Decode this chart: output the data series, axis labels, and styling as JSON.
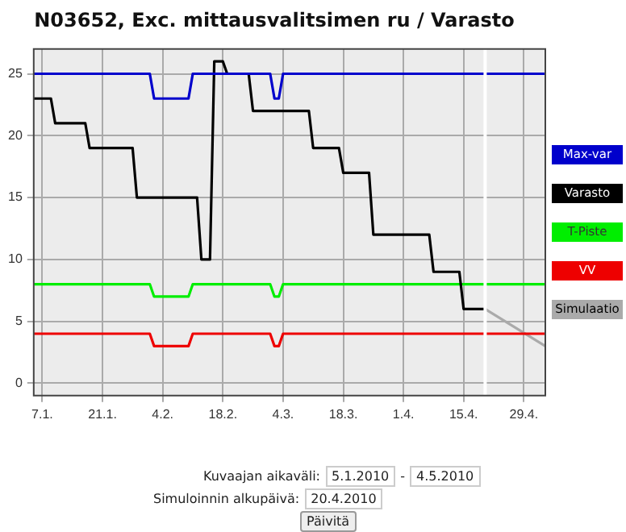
{
  "chart_data": {
    "type": "line",
    "title": "N03652, Exc. mittausvalitsimen ru / Varasto",
    "xlim": [
      "--01-05",
      "--05-04"
    ],
    "xticks": [
      {
        "value": "--01-07",
        "label": "7.1."
      },
      {
        "value": "--01-21",
        "label": "21.1."
      },
      {
        "value": "--02-04",
        "label": "4.2."
      },
      {
        "value": "--02-18",
        "label": "18.2."
      },
      {
        "value": "--03-04",
        "label": "4.3."
      },
      {
        "value": "--03-18",
        "label": "18.3."
      },
      {
        "value": "--04-01",
        "label": "1.4."
      },
      {
        "value": "--04-15",
        "label": "15.4."
      },
      {
        "value": "--04-29",
        "label": "29.4."
      }
    ],
    "ylim": [
      -1,
      27
    ],
    "yticks": [
      0,
      5,
      10,
      15,
      20,
      25
    ],
    "grid": true,
    "legend": "right",
    "marker": "none",
    "line_style": "solid",
    "ref_lines": [
      {
        "axis": "x",
        "value": "--04-20",
        "color": "#ffffff"
      }
    ],
    "series": [
      {
        "name": "Max-var",
        "color": "#0000cc",
        "x": [
          "--01-05",
          "--02-01",
          "--02-02",
          "--02-10",
          "--02-11",
          "--03-01",
          "--03-02",
          "--03-03",
          "--03-04",
          "--05-04"
        ],
        "values": [
          25,
          25,
          23,
          23,
          25,
          25,
          23,
          23,
          25,
          25
        ]
      },
      {
        "name": "Varasto",
        "color": "#000000",
        "x": [
          "--01-05",
          "--01-09",
          "--01-10",
          "--01-17",
          "--01-18",
          "--01-28",
          "--01-29",
          "--02-12",
          "--02-13",
          "--02-15",
          "--02-16",
          "--02-18",
          "--02-19",
          "--02-24",
          "--02-25",
          "--03-10",
          "--03-11",
          "--03-17",
          "--03-18",
          "--03-24",
          "--03-25",
          "--04-07",
          "--04-08",
          "--04-14",
          "--04-15",
          "--04-20"
        ],
        "values": [
          23,
          23,
          21,
          21,
          19,
          19,
          15,
          15,
          10,
          10,
          26,
          26,
          25,
          25,
          22,
          22,
          19,
          19,
          17,
          17,
          12,
          12,
          9,
          9,
          6,
          6
        ]
      },
      {
        "name": "T-Piste",
        "color": "#00ee00",
        "x": [
          "--01-05",
          "--02-01",
          "--02-02",
          "--02-10",
          "--02-11",
          "--03-01",
          "--03-02",
          "--03-03",
          "--03-04",
          "--05-04"
        ],
        "values": [
          8,
          8,
          7,
          7,
          8,
          8,
          7,
          7,
          8,
          8
        ]
      },
      {
        "name": "VV",
        "color": "#ee0000",
        "x": [
          "--01-05",
          "--02-01",
          "--02-02",
          "--02-10",
          "--02-11",
          "--03-01",
          "--03-02",
          "--03-03",
          "--03-04",
          "--05-04"
        ],
        "values": [
          4,
          4,
          3,
          3,
          4,
          4,
          3,
          3,
          4,
          4
        ]
      },
      {
        "name": "Simulaatio",
        "color": "#aaaaaa",
        "x": [
          "--04-20",
          "--05-04"
        ],
        "values": [
          6,
          3
        ]
      }
    ],
    "annotations": [
      "Kuvaajan aikaväli:",
      "5.1.2010",
      "-",
      "4.5.2010",
      "Simuloinnin alkupäivä:",
      "20.4.2010",
      "Päivitä"
    ]
  }
}
